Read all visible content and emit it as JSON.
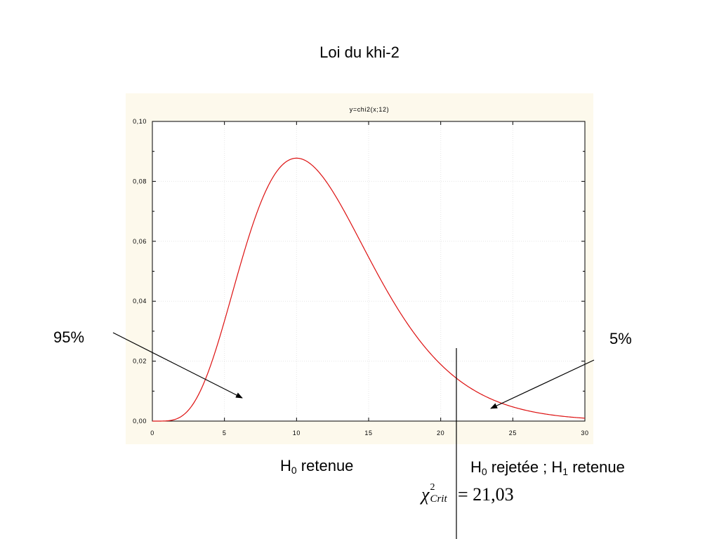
{
  "slide": {
    "title": "Loi du khi-2",
    "left_pct": "95%",
    "right_pct": "5%",
    "h0_retained": {
      "h": "H",
      "sub": "0",
      "text": " retenue"
    },
    "h0_rejected": {
      "h": "H",
      "sub0": "0",
      "mid": " rejetée ; H",
      "sub1": "1",
      "end": " retenue"
    },
    "critical": {
      "symbol": "χ",
      "sup": "2",
      "sub": "Crit",
      "eq": " = 21,03"
    }
  },
  "colors": {
    "curve": "#dd1111",
    "panel": "#fdf9ec",
    "grid": "#e6e6e6"
  },
  "chart_data": {
    "type": "line",
    "title": "y=chi2(x;12)",
    "xlabel": "",
    "ylabel": "",
    "xlim": [
      0,
      30
    ],
    "ylim": [
      0,
      0.1
    ],
    "x_ticks": [
      0,
      5,
      10,
      15,
      20,
      25,
      30
    ],
    "x_tick_labels": [
      "0",
      "5",
      "10",
      "15",
      "20",
      "25",
      "30"
    ],
    "y_ticks": [
      0,
      0.02,
      0.04,
      0.06,
      0.08,
      0.1
    ],
    "y_tick_labels": [
      "0,00",
      "0,02",
      "0,04",
      "0,06",
      "0,08",
      "0,10"
    ],
    "grid": true,
    "series": [
      {
        "x": [
          0,
          1,
          2,
          3,
          4,
          5,
          6,
          7,
          8,
          9,
          10,
          11,
          12,
          13,
          14,
          15,
          16,
          17,
          18,
          19,
          20,
          21,
          22,
          23,
          24,
          25,
          26,
          27,
          28,
          29,
          30
        ],
        "values": [
          0,
          1e-05,
          0.0004,
          0.0034,
          0.012,
          0.0267,
          0.0448,
          0.0625,
          0.0764,
          0.0849,
          0.0877,
          0.0855,
          0.0797,
          0.0714,
          0.0619,
          0.0521,
          0.0427,
          0.0342,
          0.0268,
          0.0205,
          0.0155,
          0.0115,
          0.0084,
          0.006,
          0.0043,
          0.003,
          0.0021,
          0.0014,
          0.001,
          0.0007,
          0.0004
        ]
      }
    ],
    "critical_value": 21.03
  }
}
